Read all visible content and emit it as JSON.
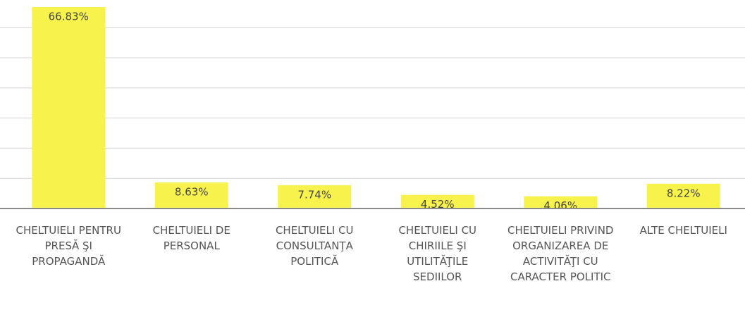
{
  "chart_data": {
    "type": "bar",
    "categories": [
      "CHELTUIELI PENTRU PRESĂ ŞI PROPAGANDĂ",
      "CHELTUIELI DE PERSONAL",
      "CHELTUIELI CU CONSULTANŢA POLITICĂ",
      "CHELTUIELI CU CHIRIILE ŞI UTILITĂŢILE SEDIILOR",
      "CHELTUIELI PRIVIND ORGANIZAREA DE ACTIVITĂŢI CU CARACTER POLITIC",
      "ALTE CHELTUIELI"
    ],
    "values": [
      66.83,
      8.63,
      7.74,
      4.52,
      4.06,
      8.22
    ],
    "value_labels": [
      "66.83%",
      "8.63%",
      "7.74%",
      "4.52%",
      "4.06%",
      "8.22%"
    ],
    "color": "#f8f34c",
    "ylim": [
      0,
      68
    ],
    "yticks": [
      0,
      10,
      20,
      30,
      40,
      50,
      60
    ],
    "grid": true
  }
}
